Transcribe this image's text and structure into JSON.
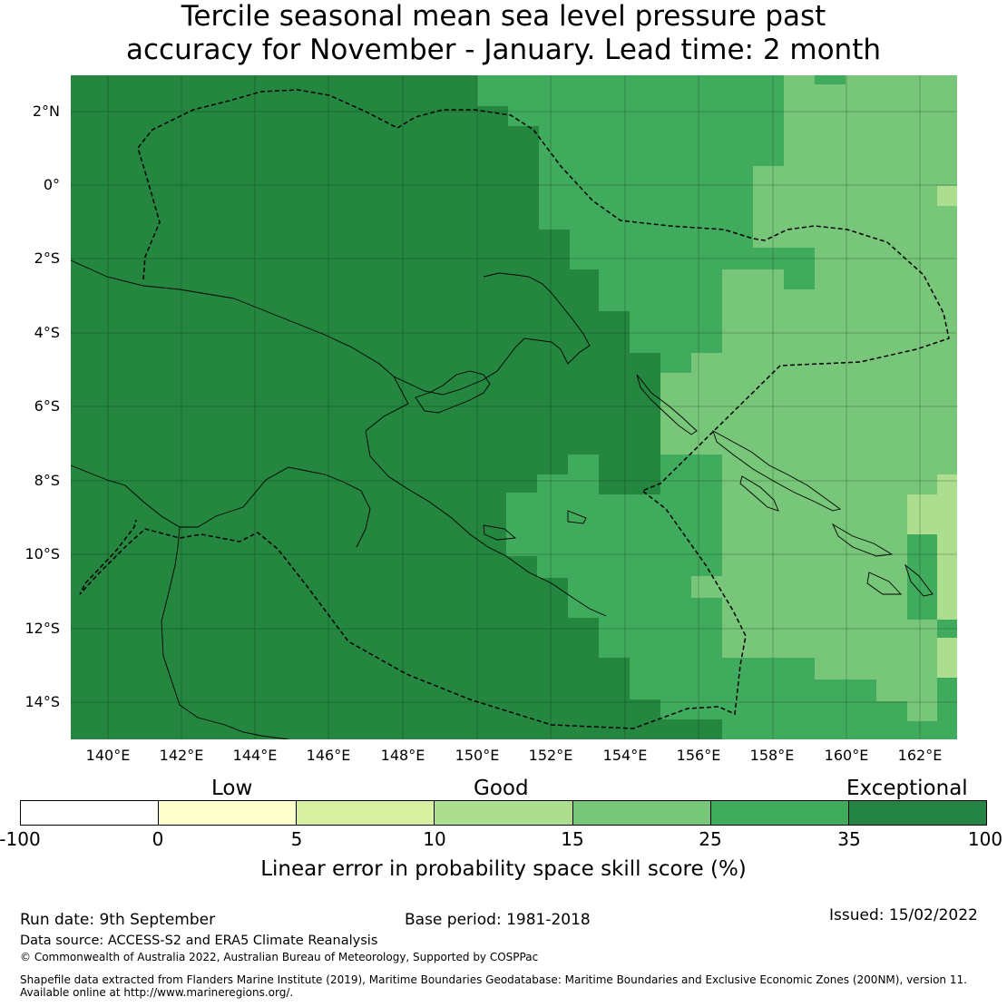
{
  "title": {
    "line1": "Tercile seasonal mean sea level pressure past",
    "line2": "accuracy for November - January. Lead time: 2 month"
  },
  "map": {
    "lat_ticks": [
      "2°N",
      "0°",
      "2°S",
      "4°S",
      "6°S",
      "8°S",
      "10°S",
      "12°S",
      "14°S"
    ],
    "lon_ticks": [
      "140°E",
      "142°E",
      "144°E",
      "146°E",
      "148°E",
      "150°E",
      "152°E",
      "154°E",
      "156°E",
      "158°E",
      "160°E",
      "162°E"
    ],
    "extent": {
      "lon": [
        139,
        163
      ],
      "lat": [
        -15,
        3
      ]
    },
    "gridlines": true
  },
  "colorbar": {
    "categories": [
      "Low",
      "Good",
      "Exceptional"
    ],
    "ticks": [
      "-100",
      "0",
      "5",
      "10",
      "15",
      "25",
      "35",
      "100"
    ],
    "colors": [
      "#ffffff",
      "#ffffcc",
      "#d9f0a3",
      "#addd8e",
      "#78c679",
      "#41ab5d",
      "#238443"
    ],
    "label": "Linear error in probability space skill score (%)"
  },
  "footer": {
    "run_date": "Run date: 9th September",
    "base_period": "Base period: 1981-2018",
    "issued": "Issued: 15/02/2022",
    "data_source": "Data source: ACCESS-S2 and ERA5 Climate Reanalysis",
    "copyright": "© Commonwealth of Australia 2022, Australian Bureau of Meteorology, Supported by COSPPac",
    "shapefile_line1": "Shapefile data extracted from Flanders Marine Institute (2019), Maritime Boundaries Geodatabase: Maritime Boundaries and Exclusive Economic Zones (200NM), version 11.",
    "shapefile_line2": "Available online at http://www.marineregions.org/."
  }
}
